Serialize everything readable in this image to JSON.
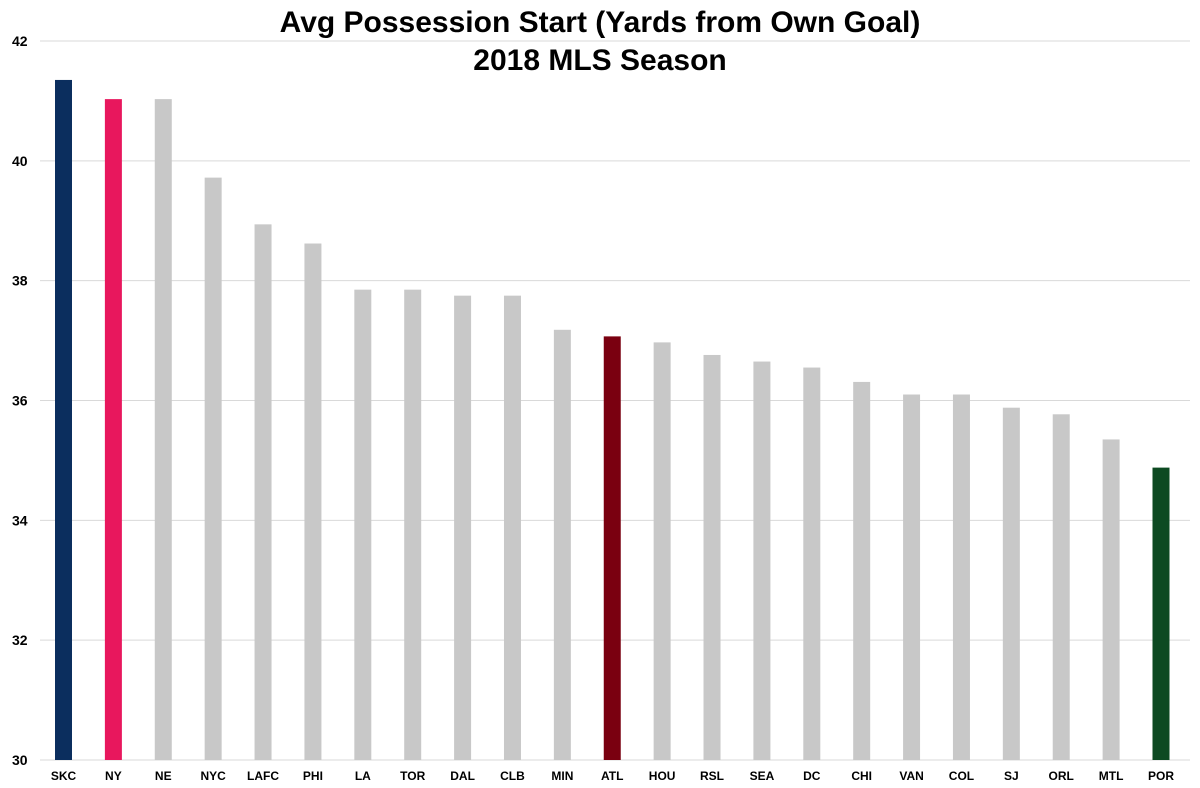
{
  "chart_data": {
    "type": "bar",
    "title_line1": "Avg Possession Start (Yards from Own Goal)",
    "title_line2": "2018 MLS Season",
    "xlabel": "",
    "ylabel": "",
    "ylim": [
      30,
      42
    ],
    "yticks": [
      30,
      32,
      34,
      36,
      38,
      40,
      42
    ],
    "grid": true,
    "categories": [
      "SKC",
      "NY",
      "NE",
      "NYC",
      "LAFC",
      "PHI",
      "LA",
      "TOR",
      "DAL",
      "CLB",
      "MIN",
      "ATL",
      "HOU",
      "RSL",
      "SEA",
      "DC",
      "CHI",
      "VAN",
      "COL",
      "SJ",
      "ORL",
      "MTL",
      "POR"
    ],
    "values": [
      41.35,
      41.03,
      41.03,
      39.72,
      38.94,
      38.62,
      37.85,
      37.85,
      37.75,
      37.75,
      37.18,
      37.07,
      36.97,
      36.76,
      36.65,
      36.55,
      36.31,
      36.1,
      36.1,
      35.88,
      35.77,
      35.35,
      34.88
    ],
    "colors": [
      "#0b2e5e",
      "#e8175d",
      "#c8c8c8",
      "#c8c8c8",
      "#c8c8c8",
      "#c8c8c8",
      "#c8c8c8",
      "#c8c8c8",
      "#c8c8c8",
      "#c8c8c8",
      "#c8c8c8",
      "#7a0010",
      "#c8c8c8",
      "#c8c8c8",
      "#c8c8c8",
      "#c8c8c8",
      "#c8c8c8",
      "#c8c8c8",
      "#c8c8c8",
      "#c8c8c8",
      "#c8c8c8",
      "#c8c8c8",
      "#0d4a22"
    ]
  }
}
